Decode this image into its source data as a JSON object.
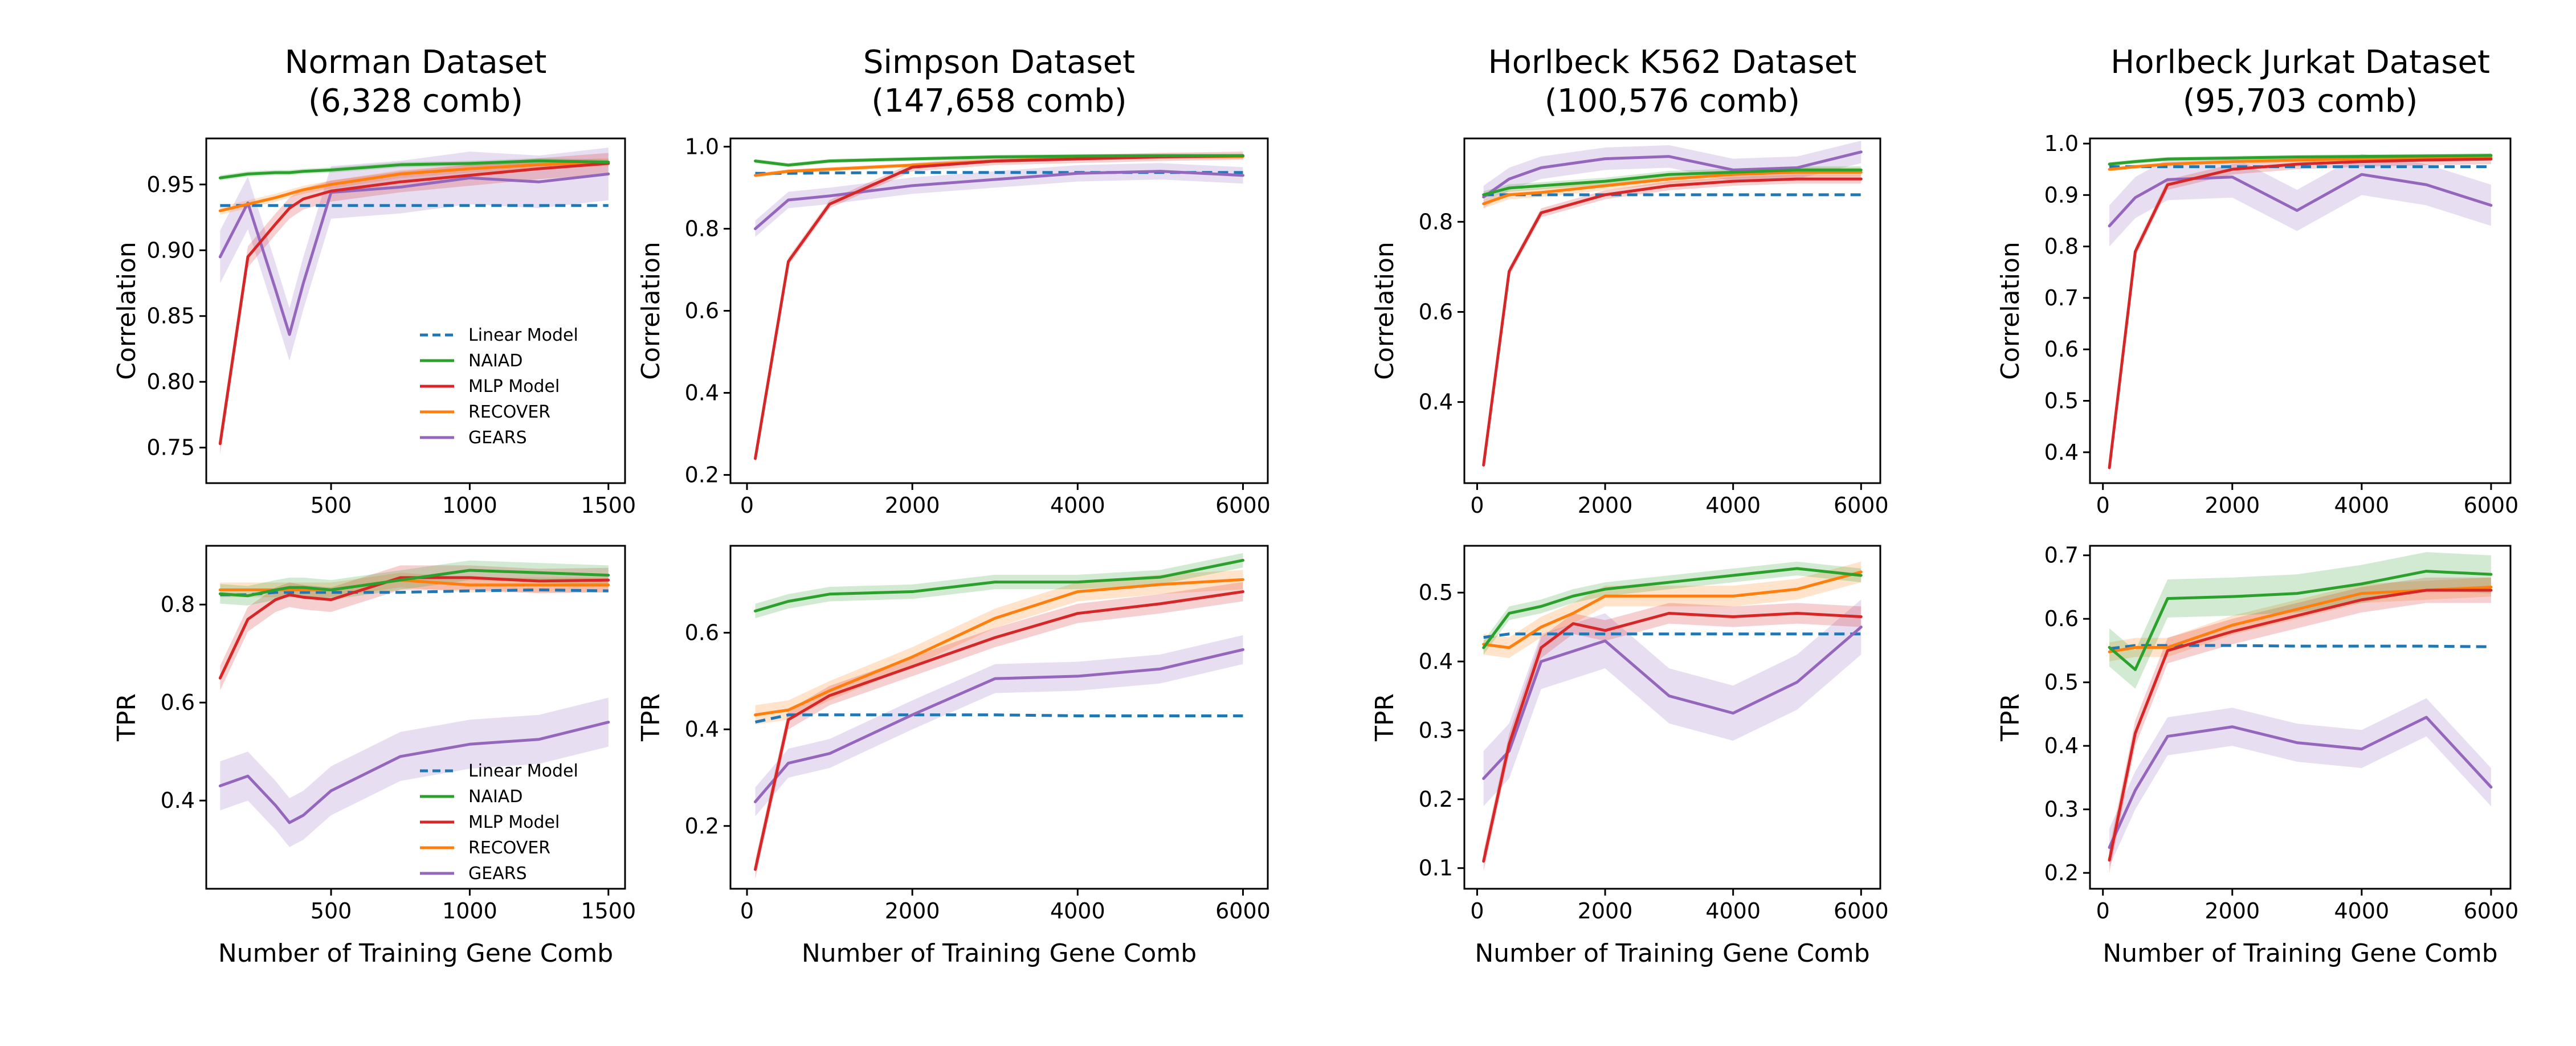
{
  "figure": {
    "xlabel": "Number of Training Gene Comb",
    "row_ylabels": [
      "Correlation",
      "TPR"
    ]
  },
  "legend": {
    "entries": [
      {
        "name": "Linear Model",
        "color": "#1f77b4",
        "dashed": true
      },
      {
        "name": "NAIAD",
        "color": "#2ca02c",
        "dashed": false
      },
      {
        "name": "MLP Model",
        "color": "#d62728",
        "dashed": false
      },
      {
        "name": "RECOVER",
        "color": "#ff7f0e",
        "dashed": false
      },
      {
        "name": "GEARS",
        "color": "#9467bd",
        "dashed": false
      }
    ]
  },
  "chart_data": [
    {
      "type": "line",
      "dataset": "Norman",
      "title": "Norman Dataset\n(6,328 comb)",
      "metric": "Correlation",
      "xlabel": "",
      "ylabel": "Correlation",
      "xlim": [
        50,
        1560
      ],
      "ylim": [
        0.723,
        0.985
      ],
      "xticks": [
        500,
        1000,
        1500
      ],
      "yticks": [
        0.75,
        0.8,
        0.85,
        0.9,
        0.95
      ],
      "ytick_labels": [
        "0.75",
        "0.80",
        "0.85",
        "0.90",
        "0.95"
      ],
      "legend": true,
      "x": [
        100,
        200,
        300,
        350,
        400,
        500,
        750,
        1000,
        1250,
        1500
      ],
      "series": [
        {
          "name": "Linear Model",
          "values": [
            0.934,
            0.934,
            0.934,
            0.934,
            0.934,
            0.934,
            0.934,
            0.934,
            0.934,
            0.934
          ],
          "band": 0.0
        },
        {
          "name": "NAIAD",
          "values": [
            0.955,
            0.958,
            0.959,
            0.959,
            0.96,
            0.961,
            0.965,
            0.966,
            0.968,
            0.967
          ],
          "band": 0.002
        },
        {
          "name": "MLP Model",
          "values": [
            0.753,
            0.895,
            0.92,
            0.932,
            0.939,
            0.945,
            0.952,
            0.957,
            0.962,
            0.966
          ],
          "band": 0.008
        },
        {
          "name": "RECOVER",
          "values": [
            0.93,
            0.935,
            0.94,
            0.943,
            0.946,
            0.95,
            0.958,
            0.962,
            0.965,
            0.967
          ],
          "band": 0.003
        },
        {
          "name": "GEARS",
          "values": [
            0.895,
            0.936,
            0.87,
            0.836,
            0.875,
            0.944,
            0.948,
            0.955,
            0.952,
            0.958
          ],
          "band": 0.02
        }
      ]
    },
    {
      "type": "line",
      "dataset": "Simpson",
      "title": "Simpson Dataset\n(147,658 comb)",
      "metric": "Correlation",
      "xlabel": "",
      "ylabel": "Correlation",
      "xlim": [
        -200,
        6300
      ],
      "ylim": [
        0.18,
        1.02
      ],
      "xticks": [
        0,
        2000,
        4000,
        6000
      ],
      "yticks": [
        0.2,
        0.4,
        0.6,
        0.8,
        1.0
      ],
      "ytick_labels": [
        "0.2",
        "0.4",
        "0.6",
        "0.8",
        "1.0"
      ],
      "legend": false,
      "x": [
        100,
        500,
        1000,
        2000,
        3000,
        4000,
        5000,
        6000
      ],
      "series": [
        {
          "name": "Linear Model",
          "values": [
            0.935,
            0.935,
            0.936,
            0.937,
            0.937,
            0.937,
            0.937,
            0.937
          ],
          "band": 0.0
        },
        {
          "name": "NAIAD",
          "values": [
            0.965,
            0.955,
            0.965,
            0.97,
            0.975,
            0.977,
            0.978,
            0.978
          ],
          "band": 0.005
        },
        {
          "name": "MLP Model",
          "values": [
            0.24,
            0.72,
            0.86,
            0.95,
            0.965,
            0.97,
            0.975,
            0.978
          ],
          "band": 0.01
        },
        {
          "name": "RECOVER",
          "values": [
            0.93,
            0.94,
            0.945,
            0.955,
            0.965,
            0.972,
            0.975,
            0.976
          ],
          "band": 0.005
        },
        {
          "name": "GEARS",
          "values": [
            0.8,
            0.87,
            0.88,
            0.905,
            0.92,
            0.935,
            0.94,
            0.93
          ],
          "band": 0.02
        }
      ]
    },
    {
      "type": "line",
      "dataset": "Horlbeck K562",
      "title": "Horlbeck K562 Dataset\n(100,576 comb)",
      "metric": "Correlation",
      "xlabel": "",
      "ylabel": "Correlation",
      "xlim": [
        -200,
        6300
      ],
      "ylim": [
        0.22,
        0.985
      ],
      "xticks": [
        0,
        2000,
        4000,
        6000
      ],
      "yticks": [
        0.4,
        0.6,
        0.8
      ],
      "ytick_labels": [
        "0.4",
        "0.6",
        "0.8"
      ],
      "legend": false,
      "x": [
        100,
        500,
        1000,
        2000,
        3000,
        4000,
        5000,
        6000
      ],
      "series": [
        {
          "name": "Linear Model",
          "values": [
            0.86,
            0.86,
            0.86,
            0.86,
            0.86,
            0.86,
            0.86,
            0.86
          ],
          "band": 0.0
        },
        {
          "name": "NAIAD",
          "values": [
            0.86,
            0.875,
            0.88,
            0.89,
            0.905,
            0.91,
            0.915,
            0.915
          ],
          "band": 0.008
        },
        {
          "name": "MLP Model",
          "values": [
            0.26,
            0.69,
            0.82,
            0.86,
            0.88,
            0.89,
            0.895,
            0.895
          ],
          "band": 0.01
        },
        {
          "name": "RECOVER",
          "values": [
            0.84,
            0.86,
            0.865,
            0.88,
            0.895,
            0.905,
            0.91,
            0.91
          ],
          "band": 0.01
        },
        {
          "name": "GEARS",
          "values": [
            0.855,
            0.895,
            0.92,
            0.94,
            0.945,
            0.915,
            0.92,
            0.955
          ],
          "band": 0.025
        }
      ]
    },
    {
      "type": "line",
      "dataset": "Horlbeck Jurkat",
      "title": "Horlbeck Jurkat Dataset\n(95,703 comb)",
      "metric": "Correlation",
      "xlabel": "",
      "ylabel": "Correlation",
      "xlim": [
        -200,
        6300
      ],
      "ylim": [
        0.34,
        1.01
      ],
      "xticks": [
        0,
        2000,
        4000,
        6000
      ],
      "yticks": [
        0.4,
        0.5,
        0.6,
        0.7,
        0.8,
        0.9,
        1.0
      ],
      "ytick_labels": [
        "0.4",
        "0.5",
        "0.6",
        "0.7",
        "0.8",
        "0.9",
        "1.0"
      ],
      "legend": false,
      "x": [
        100,
        500,
        1000,
        2000,
        3000,
        4000,
        5000,
        6000
      ],
      "series": [
        {
          "name": "Linear Model",
          "values": [
            0.955,
            0.955,
            0.955,
            0.955,
            0.955,
            0.955,
            0.955,
            0.955
          ],
          "band": 0.0
        },
        {
          "name": "NAIAD",
          "values": [
            0.96,
            0.965,
            0.97,
            0.972,
            0.974,
            0.975,
            0.976,
            0.977
          ],
          "band": 0.004
        },
        {
          "name": "MLP Model",
          "values": [
            0.37,
            0.79,
            0.92,
            0.95,
            0.96,
            0.965,
            0.968,
            0.97
          ],
          "band": 0.01
        },
        {
          "name": "RECOVER",
          "values": [
            0.95,
            0.955,
            0.96,
            0.965,
            0.968,
            0.97,
            0.972,
            0.973
          ],
          "band": 0.004
        },
        {
          "name": "GEARS",
          "values": [
            0.84,
            0.895,
            0.93,
            0.935,
            0.87,
            0.94,
            0.92,
            0.88
          ],
          "band": 0.04
        }
      ]
    },
    {
      "type": "line",
      "dataset": "Norman",
      "title": "",
      "metric": "TPR",
      "xlabel": "Number of Training Gene Comb",
      "ylabel": "TPR",
      "xlim": [
        50,
        1560
      ],
      "ylim": [
        0.22,
        0.92
      ],
      "xticks": [
        500,
        1000,
        1500
      ],
      "yticks": [
        0.4,
        0.6,
        0.8
      ],
      "ytick_labels": [
        "0.4",
        "0.6",
        "0.8"
      ],
      "legend": true,
      "x": [
        100,
        200,
        300,
        350,
        400,
        500,
        750,
        1000,
        1250,
        1500
      ],
      "series": [
        {
          "name": "Linear Model",
          "values": [
            0.82,
            0.82,
            0.825,
            0.825,
            0.825,
            0.825,
            0.825,
            0.828,
            0.83,
            0.828
          ],
          "band": 0.0
        },
        {
          "name": "NAIAD",
          "values": [
            0.822,
            0.818,
            0.83,
            0.835,
            0.835,
            0.83,
            0.85,
            0.87,
            0.865,
            0.86
          ],
          "band": 0.02
        },
        {
          "name": "MLP Model",
          "values": [
            0.65,
            0.77,
            0.81,
            0.82,
            0.815,
            0.81,
            0.855,
            0.855,
            0.848,
            0.85
          ],
          "band": 0.025
        },
        {
          "name": "RECOVER",
          "values": [
            0.83,
            0.83,
            0.83,
            0.83,
            0.83,
            0.83,
            0.85,
            0.84,
            0.84,
            0.84
          ],
          "band": 0.015
        },
        {
          "name": "GEARS",
          "values": [
            0.43,
            0.45,
            0.39,
            0.355,
            0.37,
            0.42,
            0.49,
            0.515,
            0.525,
            0.56
          ],
          "band": 0.05
        }
      ]
    },
    {
      "type": "line",
      "dataset": "Simpson",
      "title": "",
      "metric": "TPR",
      "xlabel": "Number of Training Gene Comb",
      "ylabel": "TPR",
      "xlim": [
        -200,
        6300
      ],
      "ylim": [
        0.07,
        0.78
      ],
      "xticks": [
        0,
        2000,
        4000,
        6000
      ],
      "yticks": [
        0.2,
        0.4,
        0.6
      ],
      "ytick_labels": [
        "0.2",
        "0.4",
        "0.6"
      ],
      "legend": false,
      "x": [
        100,
        500,
        1000,
        2000,
        3000,
        4000,
        5000,
        6000
      ],
      "series": [
        {
          "name": "Linear Model",
          "values": [
            0.415,
            0.43,
            0.43,
            0.43,
            0.43,
            0.428,
            0.428,
            0.428
          ],
          "band": 0.0
        },
        {
          "name": "NAIAD",
          "values": [
            0.645,
            0.665,
            0.68,
            0.685,
            0.705,
            0.705,
            0.715,
            0.75
          ],
          "band": 0.015
        },
        {
          "name": "MLP Model",
          "values": [
            0.11,
            0.42,
            0.47,
            0.53,
            0.59,
            0.64,
            0.66,
            0.685
          ],
          "band": 0.02
        },
        {
          "name": "RECOVER",
          "values": [
            0.43,
            0.44,
            0.48,
            0.55,
            0.63,
            0.685,
            0.7,
            0.71
          ],
          "band": 0.02
        },
        {
          "name": "GEARS",
          "values": [
            0.25,
            0.33,
            0.35,
            0.43,
            0.505,
            0.51,
            0.525,
            0.565
          ],
          "band": 0.03
        }
      ]
    },
    {
      "type": "line",
      "dataset": "Horlbeck K562",
      "title": "",
      "metric": "TPR",
      "xlabel": "Number of Training Gene Comb",
      "ylabel": "TPR",
      "xlim": [
        -200,
        6300
      ],
      "ylim": [
        0.07,
        0.568
      ],
      "xticks": [
        0,
        2000,
        4000,
        6000
      ],
      "yticks": [
        0.1,
        0.2,
        0.3,
        0.4,
        0.5
      ],
      "ytick_labels": [
        "0.1",
        "0.2",
        "0.3",
        "0.4",
        "0.5"
      ],
      "legend": false,
      "x": [
        100,
        500,
        1000,
        1500,
        2000,
        3000,
        4000,
        5000,
        6000
      ],
      "series": [
        {
          "name": "Linear Model",
          "values": [
            0.435,
            0.44,
            0.44,
            0.44,
            0.44,
            0.44,
            0.44,
            0.44,
            0.44
          ],
          "band": 0.0
        },
        {
          "name": "NAIAD",
          "values": [
            0.42,
            0.47,
            0.48,
            0.495,
            0.505,
            0.515,
            0.525,
            0.535,
            0.525
          ],
          "band": 0.01
        },
        {
          "name": "MLP Model",
          "values": [
            0.11,
            0.28,
            0.42,
            0.455,
            0.445,
            0.47,
            0.465,
            0.47,
            0.465
          ],
          "band": 0.015
        },
        {
          "name": "RECOVER",
          "values": [
            0.425,
            0.42,
            0.45,
            0.47,
            0.495,
            0.495,
            0.495,
            0.505,
            0.53
          ],
          "band": 0.015
        },
        {
          "name": "GEARS",
          "values": [
            0.23,
            0.27,
            0.4,
            0.415,
            0.43,
            0.35,
            0.325,
            0.37,
            0.45
          ],
          "band": 0.04
        }
      ]
    },
    {
      "type": "line",
      "dataset": "Horlbeck Jurkat",
      "title": "",
      "metric": "TPR",
      "xlabel": "Number of Training Gene Comb",
      "ylabel": "TPR",
      "xlim": [
        -200,
        6300
      ],
      "ylim": [
        0.175,
        0.715
      ],
      "xticks": [
        0,
        2000,
        4000,
        6000
      ],
      "yticks": [
        0.2,
        0.3,
        0.4,
        0.5,
        0.6,
        0.7
      ],
      "ytick_labels": [
        "0.2",
        "0.3",
        "0.4",
        "0.5",
        "0.6",
        "0.7"
      ],
      "legend": false,
      "x": [
        100,
        500,
        1000,
        2000,
        3000,
        4000,
        5000,
        6000
      ],
      "series": [
        {
          "name": "Linear Model",
          "values": [
            0.553,
            0.558,
            0.558,
            0.558,
            0.557,
            0.557,
            0.557,
            0.556
          ],
          "band": 0.0
        },
        {
          "name": "NAIAD",
          "values": [
            0.555,
            0.52,
            0.632,
            0.635,
            0.64,
            0.655,
            0.675,
            0.67
          ],
          "band": 0.03
        },
        {
          "name": "MLP Model",
          "values": [
            0.22,
            0.42,
            0.55,
            0.58,
            0.605,
            0.63,
            0.645,
            0.645
          ],
          "band": 0.02
        },
        {
          "name": "RECOVER",
          "values": [
            0.548,
            0.555,
            0.555,
            0.59,
            0.615,
            0.64,
            0.645,
            0.65
          ],
          "band": 0.015
        },
        {
          "name": "GEARS",
          "values": [
            0.24,
            0.33,
            0.415,
            0.43,
            0.405,
            0.395,
            0.445,
            0.335
          ],
          "band": 0.03
        }
      ]
    }
  ]
}
